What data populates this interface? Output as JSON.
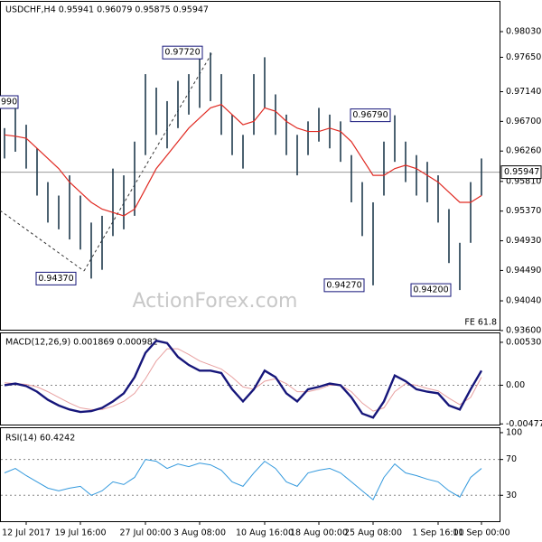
{
  "chart_data": [
    {
      "type": "ohlc",
      "title": "USDCHF,H4  0.95941 0.96079 0.95875 0.95947",
      "high": [
        0.966,
        0.969,
        0.9665,
        0.963,
        0.958,
        0.956,
        0.959,
        0.956,
        0.952,
        0.953,
        0.96,
        0.959,
        0.964,
        0.974,
        0.972,
        0.97,
        0.973,
        0.974,
        0.977,
        0.9772,
        0.974,
        0.968,
        0.965,
        0.974,
        0.9765,
        0.971,
        0.968,
        0.965,
        0.967,
        0.969,
        0.968,
        0.967,
        0.962,
        0.958,
        0.955,
        0.964,
        0.9679,
        0.964,
        0.962,
        0.961,
        0.959,
        0.954,
        0.949,
        0.958,
        0.9615
      ],
      "low": [
        0.9615,
        0.9625,
        0.96,
        0.956,
        0.952,
        0.951,
        0.9495,
        0.948,
        0.9437,
        0.945,
        0.95,
        0.951,
        0.953,
        0.962,
        0.965,
        0.963,
        0.966,
        0.968,
        0.969,
        0.97,
        0.965,
        0.962,
        0.96,
        0.965,
        0.969,
        0.965,
        0.962,
        0.959,
        0.962,
        0.964,
        0.963,
        0.961,
        0.955,
        0.95,
        0.9427,
        0.956,
        0.961,
        0.958,
        0.956,
        0.955,
        0.952,
        0.946,
        0.942,
        0.949,
        0.956
      ],
      "ma": {
        "color": "#e02a22",
        "values": [
          0.965,
          0.9648,
          0.9645,
          0.963,
          0.9615,
          0.96,
          0.958,
          0.9565,
          0.955,
          0.954,
          0.9535,
          0.953,
          0.954,
          0.957,
          0.96,
          0.962,
          0.964,
          0.966,
          0.9675,
          0.969,
          0.9695,
          0.968,
          0.9665,
          0.967,
          0.969,
          0.9685,
          0.967,
          0.966,
          0.9655,
          0.9655,
          0.966,
          0.9655,
          0.964,
          0.9615,
          0.959,
          0.959,
          0.96,
          0.9605,
          0.96,
          0.959,
          0.958,
          0.9565,
          0.955,
          0.955,
          0.956
        ]
      },
      "color": "#1f3a4d",
      "last": {
        "value": 0.95947,
        "label": "0.95947"
      },
      "annotations": [
        {
          "value": 0.9772,
          "label": "0.97720"
        },
        {
          "value": 0.9437,
          "label": "0.94370"
        },
        {
          "value": 0.9427,
          "label": "0.94270"
        },
        {
          "value": 0.9679,
          "label": "0.96790"
        },
        {
          "value": 0.942,
          "label": "0.94200"
        }
      ],
      "edge_label": "990",
      "fe_label": "FE 61.8",
      "watermark": "ActionForex.com",
      "ylim": [
        0.93612,
        0.98472
      ],
      "yticks": [
        {
          "value": 0.9803,
          "label": "0.98030"
        },
        {
          "value": 0.9765,
          "label": "0.97650"
        },
        {
          "value": 0.9714,
          "label": "0.97140"
        },
        {
          "value": 0.967,
          "label": "0.96700"
        },
        {
          "value": 0.9626,
          "label": "0.96260"
        },
        {
          "value": 0.9581,
          "label": "0.95810"
        },
        {
          "value": 0.9537,
          "label": "0.95370"
        },
        {
          "value": 0.9493,
          "label": "0.94930"
        },
        {
          "value": 0.9449,
          "label": "0.94490"
        },
        {
          "value": 0.9404,
          "label": "0.94040"
        },
        {
          "value": 0.936,
          "label": "0.93600"
        }
      ]
    },
    {
      "type": "macd",
      "title": "MACD(12,26,9) 0.001869 0.000982",
      "macd": {
        "color": "#16167a",
        "values": [
          0.0,
          0.0002,
          -0.0001,
          -0.0008,
          -0.0018,
          -0.0025,
          -0.003,
          -0.0033,
          -0.0032,
          -0.0028,
          -0.002,
          -0.001,
          0.001,
          0.004,
          0.0055,
          0.0052,
          0.0035,
          0.0025,
          0.0018,
          0.0018,
          0.0015,
          -0.0005,
          -0.002,
          -0.0005,
          0.0018,
          0.001,
          -0.001,
          -0.002,
          -0.0005,
          -0.0002,
          0.0002,
          0.0,
          -0.0015,
          -0.0035,
          -0.004,
          -0.002,
          0.0012,
          0.0005,
          -0.0005,
          -0.0008,
          -0.001,
          -0.0025,
          -0.003,
          -0.0005,
          0.0018
        ]
      },
      "signal": {
        "color": "#e8a0a0",
        "values": [
          0.0003,
          0.0002,
          0.0001,
          -0.0002,
          -0.0008,
          -0.0015,
          -0.0022,
          -0.0028,
          -0.003,
          -0.003,
          -0.0026,
          -0.002,
          -0.001,
          0.0008,
          0.003,
          0.0045,
          0.0045,
          0.0038,
          0.003,
          0.0025,
          0.002,
          0.001,
          -0.0002,
          -0.0005,
          0.0005,
          0.0008,
          0.0002,
          -0.0008,
          -0.0008,
          -0.0005,
          0.0,
          0.0,
          -0.0008,
          -0.0022,
          -0.0032,
          -0.0028,
          -0.0008,
          0.0002,
          0.0,
          -0.0004,
          -0.0007,
          -0.0016,
          -0.0024,
          -0.0015,
          0.001
        ]
      },
      "ylim": [
        -0.00486,
        0.00641
      ],
      "yticks": [
        0.005303,
        {
          "value": 0,
          "label": "0.00"
        },
        -0.004777
      ],
      "levels": [
        0
      ]
    },
    {
      "type": "rsi",
      "title": "RSI(14) 60.4242",
      "rsi": {
        "color": "#3399dd",
        "values": [
          55,
          60,
          52,
          45,
          38,
          35,
          38,
          40,
          30,
          35,
          45,
          42,
          50,
          70,
          68,
          60,
          65,
          62,
          66,
          64,
          58,
          45,
          40,
          55,
          68,
          60,
          45,
          40,
          55,
          58,
          60,
          55,
          45,
          35,
          25,
          50,
          65,
          55,
          52,
          48,
          45,
          35,
          28,
          50,
          60
        ]
      },
      "ylim": [
        1,
        105
      ],
      "yticks": [
        100,
        70,
        30
      ],
      "levels": [
        70,
        30
      ],
      "categories": [
        null,
        null,
        "12 Jul 2017",
        null,
        null,
        null,
        null,
        "19 Jul 16:00",
        null,
        null,
        null,
        null,
        null,
        "27 Jul 00:00",
        null,
        null,
        null,
        null,
        "3 Aug 08:00",
        null,
        null,
        null,
        null,
        null,
        "10 Aug 16:00",
        null,
        null,
        null,
        null,
        "18 Aug 00:00",
        null,
        null,
        null,
        null,
        "25 Aug 08:00",
        null,
        null,
        null,
        null,
        null,
        "1 Sep 16:00",
        null,
        null,
        null,
        "11 Sep 00:00"
      ]
    }
  ]
}
